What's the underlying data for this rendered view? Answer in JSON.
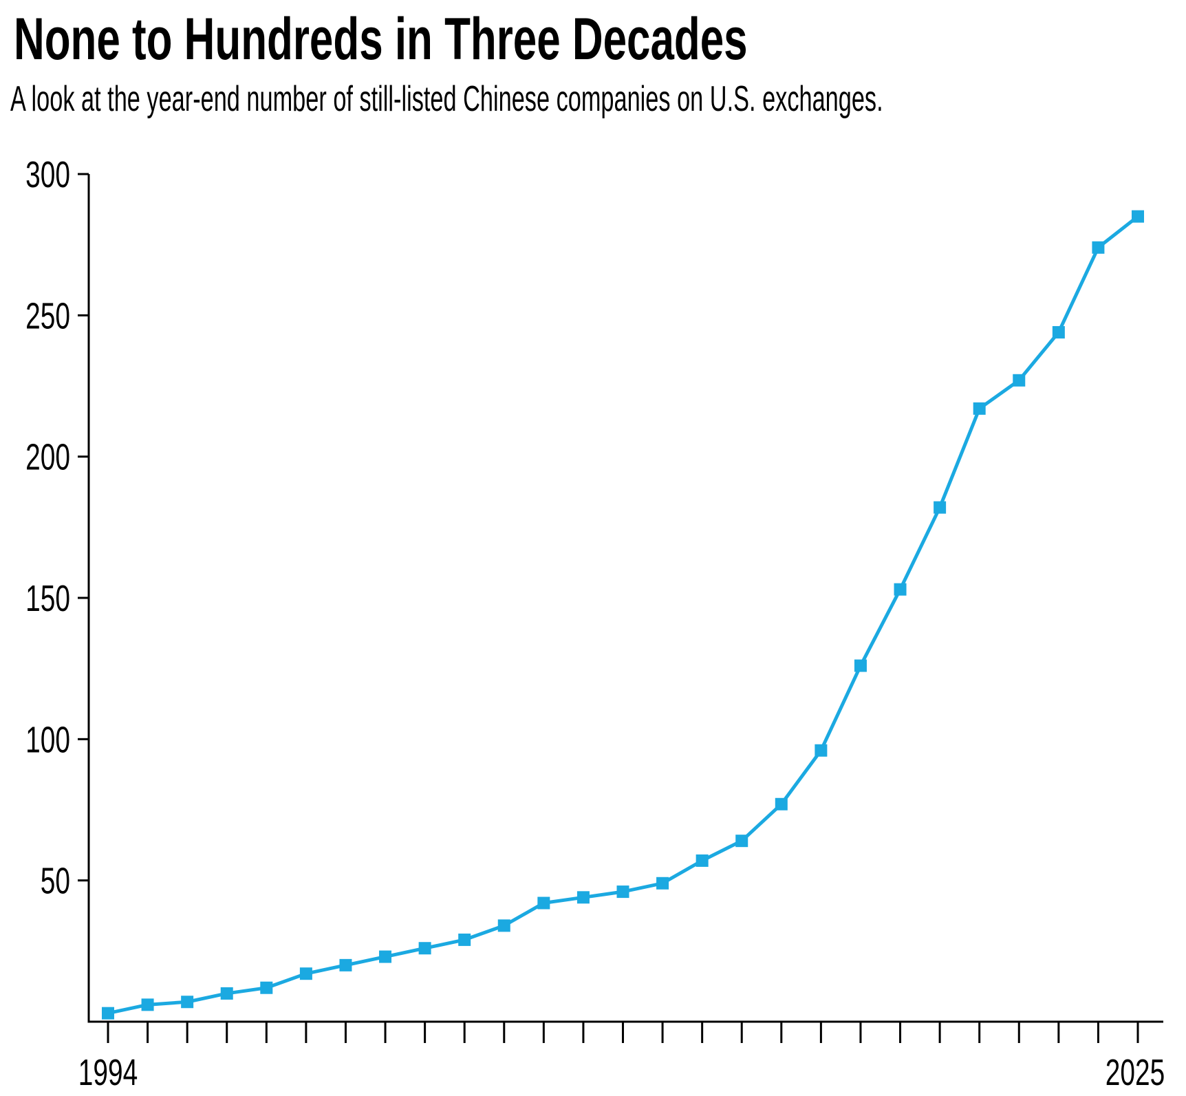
{
  "chart_data": {
    "type": "line",
    "title": "None to Hundreds in Three Decades",
    "subtitle": "A look at the year-end number of still-listed Chinese companies on U.S. exchanges.",
    "xlabel": "",
    "ylabel": "",
    "x_tick_labels": [
      "1994",
      "2025"
    ],
    "y_ticks": [
      50,
      100,
      150,
      200,
      250,
      300
    ],
    "ylim": [
      0,
      300
    ],
    "grid": false,
    "series": [
      {
        "name": "Chinese companies listed on U.S. exchanges",
        "color": "#1ba9e1",
        "marker": "square",
        "values": [
          3,
          6,
          7,
          10,
          12,
          17,
          20,
          23,
          26,
          29,
          34,
          42,
          44,
          46,
          49,
          57,
          64,
          77,
          96,
          126,
          153,
          182,
          217,
          227,
          244,
          274,
          285
        ]
      }
    ]
  }
}
